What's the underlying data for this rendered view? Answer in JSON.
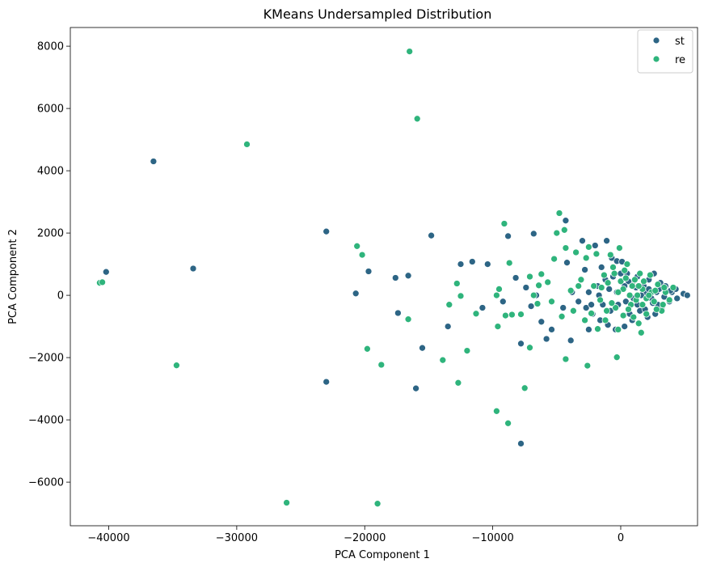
{
  "chart_data": {
    "type": "scatter",
    "title": "KMeans Undersampled Distribution",
    "xlabel": "PCA Component 1",
    "ylabel": "PCA Component 2",
    "xlim": [
      -43000,
      6000
    ],
    "ylim": [
      -7400,
      8600
    ],
    "xticks": [
      -40000,
      -30000,
      -20000,
      -10000,
      0
    ],
    "xtick_labels": [
      "−40000",
      "−30000",
      "−20000",
      "−10000",
      "0"
    ],
    "yticks": [
      -6000,
      -4000,
      -2000,
      0,
      2000,
      4000,
      6000,
      8000
    ],
    "ytick_labels": [
      "−6000",
      "−4000",
      "−2000",
      "0",
      "2000",
      "4000",
      "6000",
      "8000"
    ],
    "grid": false,
    "legend": {
      "position": "top-right"
    },
    "series": [
      {
        "name": "st",
        "color": "#2d6585",
        "points": [
          [
            -36500,
            4300
          ],
          [
            -40200,
            750
          ],
          [
            -33400,
            860
          ],
          [
            -23000,
            2050
          ],
          [
            -23000,
            -2780
          ],
          [
            -20700,
            60
          ],
          [
            -19700,
            770
          ],
          [
            -17600,
            560
          ],
          [
            -17400,
            -570
          ],
          [
            -16600,
            630
          ],
          [
            -16000,
            -2990
          ],
          [
            -15500,
            -1690
          ],
          [
            -14800,
            1920
          ],
          [
            -13500,
            -1000
          ],
          [
            -12500,
            1000
          ],
          [
            -11600,
            1080
          ],
          [
            -10400,
            1000
          ],
          [
            -8800,
            1900
          ],
          [
            -7800,
            -4760
          ],
          [
            -7800,
            -1550
          ],
          [
            -6800,
            1980
          ],
          [
            -4300,
            2400
          ],
          [
            -4200,
            1050
          ],
          [
            -3900,
            -1450
          ],
          [
            -3000,
            1750
          ],
          [
            -2800,
            820
          ],
          [
            -2500,
            -1100
          ],
          [
            -2000,
            1600
          ],
          [
            -1500,
            900
          ],
          [
            -1100,
            1750
          ],
          [
            -700,
            1200
          ],
          [
            -300,
            1100
          ],
          [
            100,
            1080
          ],
          [
            500,
            700
          ],
          [
            900,
            400
          ],
          [
            1300,
            600
          ],
          [
            1800,
            300
          ],
          [
            2200,
            500
          ],
          [
            2600,
            700
          ],
          [
            3100,
            400
          ],
          [
            3500,
            300
          ],
          [
            4000,
            100
          ],
          [
            4400,
            -100
          ],
          [
            4900,
            50
          ],
          [
            5200,
            0
          ],
          [
            4300,
            200
          ],
          [
            3800,
            -200
          ],
          [
            3200,
            -400
          ],
          [
            2700,
            -600
          ],
          [
            2100,
            -700
          ],
          [
            1500,
            -500
          ],
          [
            900,
            -800
          ],
          [
            300,
            -1000
          ],
          [
            -400,
            -1100
          ],
          [
            -1000,
            -950
          ],
          [
            -1600,
            -800
          ],
          [
            -2200,
            -600
          ],
          [
            -2700,
            -400
          ],
          [
            -3300,
            -200
          ],
          [
            -3800,
            100
          ],
          [
            -4500,
            -400
          ],
          [
            -5400,
            -1100
          ],
          [
            -5800,
            -1400
          ],
          [
            -6200,
            -850
          ],
          [
            -6600,
            0
          ],
          [
            -7000,
            -350
          ],
          [
            -7400,
            250
          ],
          [
            -8200,
            560
          ],
          [
            -10800,
            -400
          ],
          [
            -9200,
            -200
          ],
          [
            -2500,
            100
          ],
          [
            -1800,
            300
          ],
          [
            -1200,
            500
          ],
          [
            -600,
            600
          ],
          [
            0,
            700
          ],
          [
            600,
            450
          ],
          [
            1200,
            250
          ],
          [
            1900,
            100
          ],
          [
            2400,
            -100
          ],
          [
            2900,
            -300
          ],
          [
            3400,
            -50
          ],
          [
            3900,
            150
          ],
          [
            -1400,
            -300
          ],
          [
            -800,
            -500
          ],
          [
            -200,
            -300
          ],
          [
            400,
            -200
          ],
          [
            1000,
            -100
          ],
          [
            1600,
            0
          ],
          [
            2200,
            200
          ],
          [
            2800,
            100
          ],
          [
            -2300,
            -300
          ],
          [
            -1700,
            0
          ],
          [
            -900,
            200
          ],
          [
            -300,
            100
          ],
          [
            300,
            300
          ],
          [
            700,
            -600
          ],
          [
            1300,
            -300
          ],
          [
            1900,
            -450
          ],
          [
            2500,
            -250
          ],
          [
            3000,
            200
          ]
        ]
      },
      {
        "name": "re",
        "color": "#2fb47c",
        "points": [
          [
            -16500,
            7830
          ],
          [
            -15900,
            5670
          ],
          [
            -29200,
            4850
          ],
          [
            -40700,
            400
          ],
          [
            -40500,
            420
          ],
          [
            -34700,
            -2250
          ],
          [
            -26100,
            -6660
          ],
          [
            -19000,
            -6690
          ],
          [
            -20600,
            1580
          ],
          [
            -20200,
            1300
          ],
          [
            -19800,
            -1720
          ],
          [
            -18700,
            -2230
          ],
          [
            -16600,
            -770
          ],
          [
            -13900,
            -2080
          ],
          [
            -13400,
            -300
          ],
          [
            -12800,
            380
          ],
          [
            -12500,
            -20
          ],
          [
            -12700,
            -2810
          ],
          [
            -12000,
            -1780
          ],
          [
            -11300,
            -590
          ],
          [
            -9700,
            -3720
          ],
          [
            -9700,
            0
          ],
          [
            -9500,
            200
          ],
          [
            -9600,
            -1000
          ],
          [
            -9100,
            2300
          ],
          [
            -9000,
            -650
          ],
          [
            -8800,
            -4110
          ],
          [
            -8700,
            1040
          ],
          [
            -8500,
            -620
          ],
          [
            -7800,
            -610
          ],
          [
            -7500,
            -2980
          ],
          [
            -7100,
            -1680
          ],
          [
            -7100,
            600
          ],
          [
            -6800,
            0
          ],
          [
            -6500,
            -270
          ],
          [
            -6400,
            320
          ],
          [
            -6200,
            680
          ],
          [
            -5700,
            420
          ],
          [
            -5400,
            -200
          ],
          [
            -5200,
            1170
          ],
          [
            -5000,
            2000
          ],
          [
            -4800,
            2640
          ],
          [
            -4600,
            -680
          ],
          [
            -4400,
            2100
          ],
          [
            -4300,
            -2050
          ],
          [
            -4300,
            1520
          ],
          [
            -3900,
            150
          ],
          [
            -3500,
            1380
          ],
          [
            -3100,
            500
          ],
          [
            -2700,
            1200
          ],
          [
            -2600,
            -2260
          ],
          [
            -2500,
            1550
          ],
          [
            -2300,
            -580
          ],
          [
            -1900,
            1330
          ],
          [
            -1800,
            -1080
          ],
          [
            -1500,
            250
          ],
          [
            -1200,
            -800
          ],
          [
            -800,
            1300
          ],
          [
            -500,
            700
          ],
          [
            -300,
            -1990
          ],
          [
            -200,
            -1100
          ],
          [
            -100,
            1520
          ],
          [
            200,
            -650
          ],
          [
            500,
            1000
          ],
          [
            800,
            -300
          ],
          [
            1100,
            500
          ],
          [
            1400,
            -900
          ],
          [
            1700,
            200
          ],
          [
            2000,
            -600
          ],
          [
            2300,
            650
          ],
          [
            2600,
            -200
          ],
          [
            2900,
            350
          ],
          [
            3200,
            -500
          ],
          [
            3500,
            100
          ],
          [
            3800,
            -150
          ],
          [
            4100,
            250
          ],
          [
            -1600,
            -150
          ],
          [
            -1000,
            400
          ],
          [
            -400,
            -400
          ],
          [
            200,
            200
          ],
          [
            700,
            0
          ],
          [
            1200,
            -150
          ],
          [
            1800,
            450
          ],
          [
            2400,
            100
          ],
          [
            -2100,
            300
          ],
          [
            -1300,
            650
          ],
          [
            -700,
            -250
          ],
          [
            0,
            450
          ],
          [
            600,
            -450
          ],
          [
            1400,
            300
          ],
          [
            2000,
            -100
          ],
          [
            2700,
            150
          ],
          [
            3300,
            -300
          ],
          [
            -2800,
            -800
          ],
          [
            -3300,
            300
          ],
          [
            -3700,
            -500
          ],
          [
            -600,
            900
          ],
          [
            300,
            800
          ],
          [
            1000,
            -700
          ],
          [
            1500,
            700
          ],
          [
            1600,
            -1200
          ],
          [
            -1100,
            -500
          ],
          [
            -200,
            100
          ],
          [
            400,
            550
          ],
          [
            900,
            300
          ],
          [
            1300,
            0
          ],
          [
            1700,
            -300
          ],
          [
            2200,
            0
          ],
          [
            2800,
            -450
          ],
          [
            3400,
            250
          ]
        ]
      }
    ]
  }
}
